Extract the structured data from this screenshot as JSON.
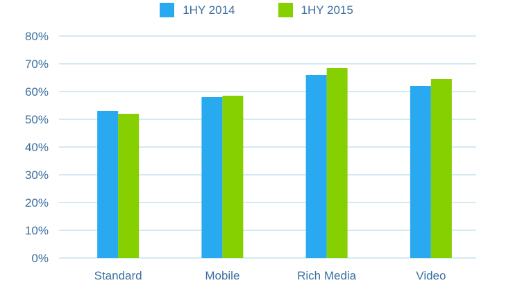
{
  "chart_data": {
    "type": "bar",
    "categories": [
      "Standard",
      "Mobile",
      "Rich Media",
      "Video"
    ],
    "series": [
      {
        "name": "1HY 2014",
        "color": "#29aaf0",
        "values": [
          53,
          58,
          66,
          62
        ]
      },
      {
        "name": "1HY 2015",
        "color": "#86cf00",
        "values": [
          52,
          58.5,
          68.5,
          64.5
        ]
      }
    ],
    "ylim": [
      0,
      80
    ],
    "yticks": [
      "0%",
      "10%",
      "20%",
      "30%",
      "40%",
      "50%",
      "60%",
      "70%",
      "80%"
    ],
    "grid": true,
    "gridColor": "#a8d4e6",
    "legend": "top-center"
  }
}
